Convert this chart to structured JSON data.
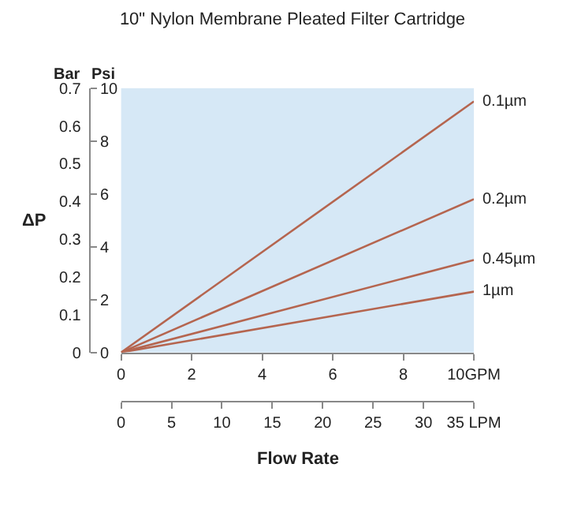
{
  "chart_data": {
    "type": "line",
    "title": "10\" Nylon Membrane Pleated Filter Cartridge",
    "xlabel": "Flow Rate",
    "ylabel": "Psi",
    "y2label": "Bar",
    "annotations": [
      "ΔP"
    ],
    "x": [
      0,
      10
    ],
    "series": [
      {
        "name": "0.1µm",
        "color": "#b5654f",
        "values": [
          0,
          9.5
        ]
      },
      {
        "name": "0.2µm",
        "color": "#b5654f",
        "values": [
          0,
          5.8
        ]
      },
      {
        "name": "0.45µm",
        "color": "#b5654f",
        "values": [
          0,
          3.5
        ]
      },
      {
        "name": "1µm",
        "color": "#b5654f",
        "values": [
          0,
          2.3
        ]
      }
    ],
    "xlim": [
      0,
      10
    ],
    "xticks": [
      0,
      2,
      4,
      6,
      8,
      {
        "value": 10,
        "label": "10GPM"
      }
    ],
    "x2lim": [
      0,
      35
    ],
    "x2ticks": [
      0,
      5,
      10,
      15,
      20,
      25,
      30,
      {
        "value": 35,
        "label": "35 LPM"
      }
    ],
    "ylim": [
      0,
      10
    ],
    "yticks": [
      0,
      2,
      4,
      6,
      8,
      10
    ],
    "y2lim": [
      0,
      0.7
    ],
    "y2ticks": [
      0,
      0.1,
      0.2,
      0.3,
      0.4,
      0.5,
      0.6,
      0.7
    ],
    "grid": false,
    "legend": false,
    "marker": "none",
    "line_style": "solid"
  }
}
